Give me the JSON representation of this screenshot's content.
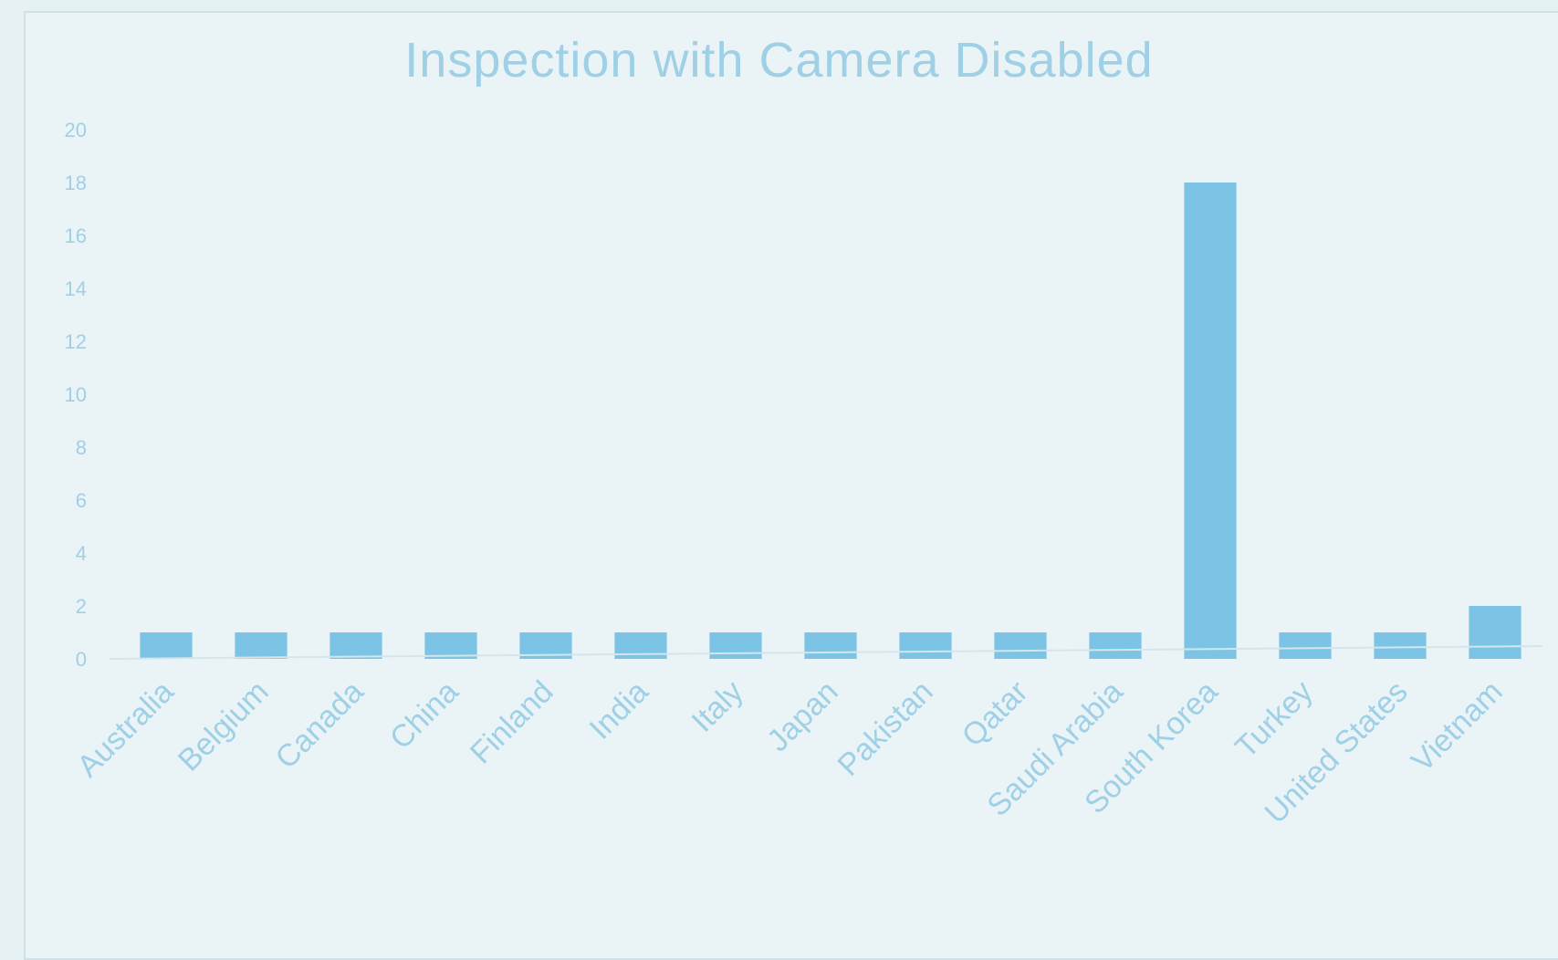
{
  "chart_data": {
    "type": "bar",
    "title": "Inspection with Camera Disabled",
    "xlabel": "",
    "ylabel": "",
    "categories": [
      "Australia",
      "Belgium",
      "Canada",
      "China",
      "Finland",
      "India",
      "Italy",
      "Japan",
      "Pakistan",
      "Qatar",
      "Saudi Arabia",
      "South Korea",
      "Turkey",
      "United States",
      "Vietnam"
    ],
    "values": [
      1,
      1,
      1,
      1,
      1,
      1,
      1,
      1,
      1,
      1,
      1,
      18,
      1,
      1,
      2
    ],
    "ylim": [
      0,
      20
    ],
    "yticks": [
      "0",
      "2",
      "4",
      "6",
      "8",
      "10",
      "12",
      "14",
      "16",
      "18",
      "20"
    ],
    "grid": false,
    "legend": "none",
    "bar_color": "#7cc4e6",
    "text_color": "#9fd0e6"
  }
}
